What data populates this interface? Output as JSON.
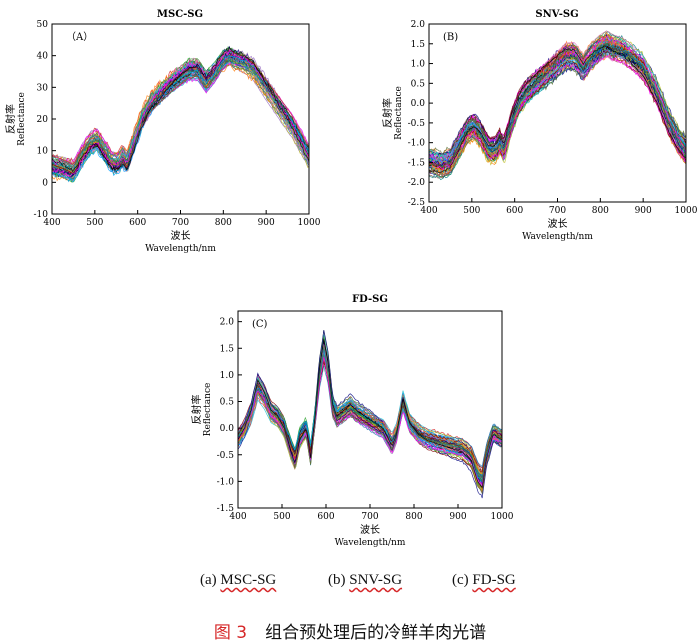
{
  "figure": {
    "caption_number": "图 3",
    "caption_text": "组合预处理后的冷鲜羊肉光谱",
    "subcaptions": [
      {
        "prefix": "(a) ",
        "label": "MSC-SG"
      },
      {
        "prefix": "(b) ",
        "label": "SNV-SG"
      },
      {
        "prefix": "(c) ",
        "label": "FD-SG"
      }
    ]
  },
  "colors": {
    "curves": [
      "#1f77b4",
      "#d62728",
      "#2ca02c",
      "#9467bd",
      "#8c564b",
      "#e377c2",
      "#17becf",
      "#bcbd22",
      "#ff7f0e",
      "#000080",
      "#008080",
      "#800000",
      "#00a0ff",
      "#ff00ff",
      "#556b2f",
      "#000000"
    ],
    "axis": "#000000"
  },
  "chart_data": [
    {
      "type": "line",
      "id": "A",
      "title": "MSC-SG",
      "panel_label": "（A）",
      "xlabel_cn": "波长",
      "xlabel": "Wavelength/nm",
      "ylabel_cn": "反射率",
      "ylabel": "Reflectance",
      "xlim": [
        400,
        1000
      ],
      "ylim": [
        -10,
        50
      ],
      "xticks": [
        400,
        500,
        600,
        700,
        800,
        900,
        1000
      ],
      "yticks": [
        -10,
        0,
        10,
        20,
        30,
        40,
        50
      ],
      "n_curves": 80,
      "mean_curve": {
        "x": [
          400,
          430,
          450,
          470,
          490,
          505,
          520,
          540,
          555,
          565,
          575,
          590,
          610,
          630,
          650,
          680,
          700,
          720,
          740,
          760,
          780,
          800,
          815,
          830,
          850,
          870,
          900,
          930,
          960,
          980,
          1000
        ],
        "y": [
          5,
          4,
          3,
          8,
          12,
          13,
          10,
          6,
          6,
          8,
          6,
          12,
          20,
          25,
          28,
          32,
          34,
          36,
          36,
          32,
          35,
          39,
          40,
          39,
          38,
          36,
          30,
          24,
          18,
          13,
          8
        ]
      },
      "spread_max": [
        4,
        2.5
      ]
    },
    {
      "type": "line",
      "id": "B",
      "title": "SNV-SG",
      "panel_label": "(B)",
      "xlabel_cn": "波长",
      "xlabel": "Wavelength/nm",
      "ylabel_cn": "反射率",
      "ylabel": "Reflectance",
      "xlim": [
        400,
        1000
      ],
      "ylim": [
        -2.5,
        2.0
      ],
      "xticks": [
        400,
        500,
        600,
        700,
        800,
        900,
        1000
      ],
      "yticks": [
        -2.5,
        -2.0,
        -1.5,
        -1.0,
        -0.5,
        0.0,
        0.5,
        1.0,
        1.5,
        2.0
      ],
      "n_curves": 80,
      "mean_curve": {
        "x": [
          400,
          430,
          450,
          470,
          490,
          505,
          520,
          540,
          555,
          565,
          575,
          590,
          610,
          630,
          650,
          680,
          700,
          720,
          740,
          760,
          780,
          800,
          815,
          830,
          850,
          870,
          900,
          930,
          960,
          980,
          1000
        ],
        "y": [
          -1.5,
          -1.6,
          -1.5,
          -1.1,
          -0.7,
          -0.6,
          -0.8,
          -1.2,
          -1.2,
          -1.0,
          -1.2,
          -0.6,
          0.0,
          0.3,
          0.5,
          0.8,
          1.0,
          1.2,
          1.2,
          0.9,
          1.2,
          1.4,
          1.5,
          1.4,
          1.35,
          1.2,
          0.9,
          0.3,
          -0.5,
          -0.9,
          -1.2
        ]
      },
      "spread_max": [
        0.35,
        0.2
      ]
    },
    {
      "type": "line",
      "id": "C",
      "title": "FD-SG",
      "panel_label": "(C)",
      "xlabel_cn": "波长",
      "xlabel": "Wavelength/nm",
      "ylabel_cn": "反射率",
      "ylabel": "Reflectance",
      "xlim": [
        400,
        1000
      ],
      "ylim": [
        -1.5,
        2.2
      ],
      "xticks": [
        400,
        500,
        600,
        700,
        800,
        900,
        1000
      ],
      "yticks": [
        -1.5,
        -1.0,
        -0.5,
        0.0,
        0.5,
        1.0,
        1.5,
        2.0
      ],
      "n_curves": 80,
      "mean_curve": {
        "x": [
          400,
          415,
          430,
          445,
          460,
          475,
          490,
          505,
          520,
          530,
          540,
          555,
          565,
          575,
          585,
          595,
          605,
          615,
          625,
          640,
          655,
          670,
          690,
          710,
          730,
          750,
          760,
          775,
          790,
          810,
          830,
          850,
          870,
          890,
          910,
          930,
          945,
          955,
          965,
          980,
          1000
        ],
        "y": [
          -0.2,
          0.0,
          0.3,
          0.8,
          0.6,
          0.3,
          0.2,
          0.0,
          -0.4,
          -0.6,
          -0.2,
          0.0,
          -0.5,
          0.2,
          1.0,
          1.5,
          1.1,
          0.4,
          0.2,
          0.3,
          0.4,
          0.3,
          0.2,
          0.1,
          0.0,
          -0.3,
          -0.1,
          0.5,
          0.1,
          -0.1,
          -0.2,
          -0.25,
          -0.3,
          -0.35,
          -0.4,
          -0.55,
          -0.9,
          -1.0,
          -0.5,
          -0.1,
          -0.2
        ]
      },
      "spread_max": [
        0.2,
        0.08
      ]
    }
  ]
}
